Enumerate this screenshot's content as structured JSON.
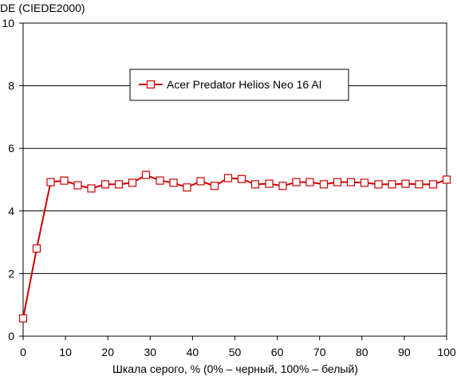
{
  "chart_data": {
    "type": "line",
    "title": "",
    "ylabel": "DE (CIEDE2000)",
    "xlabel": "Шкала серого, % (0% – черный, 100% – белый)",
    "xlim": [
      0,
      100
    ],
    "ylim": [
      0,
      10
    ],
    "xticks": [
      0,
      10,
      20,
      30,
      40,
      50,
      60,
      70,
      80,
      90,
      100
    ],
    "yticks": [
      0,
      2,
      4,
      6,
      8,
      10
    ],
    "grid": "horizontal",
    "legend_position": "top-center",
    "series": [
      {
        "name": "Acer Predator Helios Neo 16 AI",
        "color": "#cc0000",
        "marker": "open-square",
        "x": [
          0,
          3.2,
          6.5,
          9.7,
          12.9,
          16.1,
          19.4,
          22.6,
          25.8,
          29.0,
          32.3,
          35.5,
          38.7,
          41.9,
          45.2,
          48.4,
          51.6,
          54.8,
          58.1,
          61.3,
          64.5,
          67.7,
          71.0,
          74.2,
          77.4,
          80.6,
          83.9,
          87.1,
          90.3,
          93.5,
          96.8,
          100
        ],
        "y": [
          0.57,
          2.8,
          4.92,
          4.97,
          4.82,
          4.72,
          4.85,
          4.85,
          4.9,
          5.15,
          4.97,
          4.9,
          4.75,
          4.95,
          4.8,
          5.05,
          5.02,
          4.85,
          4.87,
          4.8,
          4.92,
          4.92,
          4.85,
          4.92,
          4.92,
          4.9,
          4.85,
          4.85,
          4.87,
          4.85,
          4.85,
          5.0
        ]
      }
    ]
  }
}
